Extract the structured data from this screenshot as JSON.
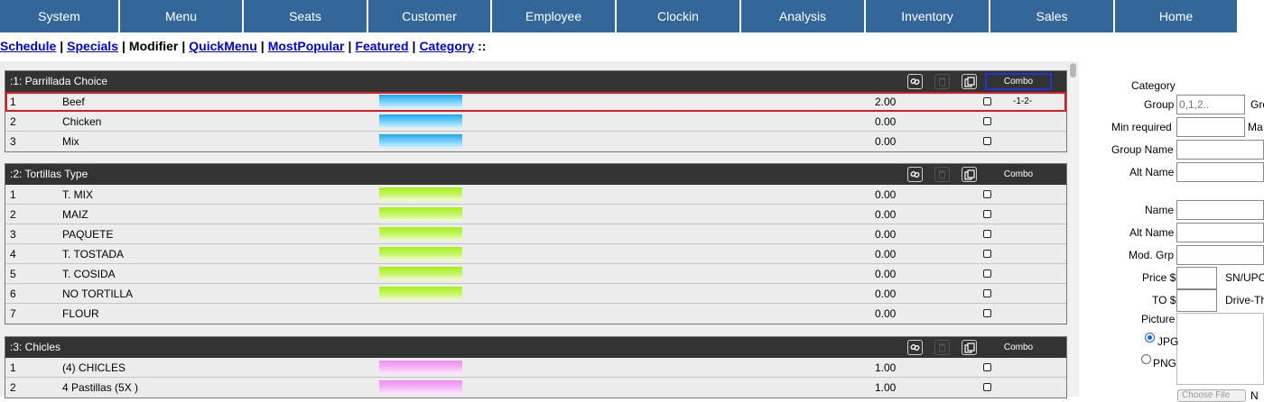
{
  "topnav": {
    "tabs": [
      {
        "label": "System"
      },
      {
        "label": "Menu"
      },
      {
        "label": "Seats"
      },
      {
        "label": "Customer"
      },
      {
        "label": "Employee"
      },
      {
        "label": "Clockin"
      },
      {
        "label": "Analysis"
      },
      {
        "label": "Inventory"
      },
      {
        "label": "Sales"
      },
      {
        "label": "Home"
      }
    ]
  },
  "subnav": {
    "schedule": "Schedule",
    "specials": "Specials",
    "modifier": "Modifier",
    "quickmenu": "QuickMenu",
    "mostpopular": "MostPopular",
    "featured": "Featured",
    "category": "Category",
    "sep": "|",
    "end": "::"
  },
  "groups": [
    {
      "title": ":1: Parrillada Choice",
      "combo_label": "Combo",
      "rows": [
        {
          "num": "1",
          "name": "Beef",
          "price": "2.00",
          "combo": "-1-2-"
        },
        {
          "num": "2",
          "name": "Chicken",
          "price": "0.00",
          "combo": ""
        },
        {
          "num": "3",
          "name": "Mix",
          "price": "0.00",
          "combo": ""
        }
      ]
    },
    {
      "title": ":2: Tortillas Type",
      "combo_label": "Combo",
      "rows": [
        {
          "num": "1",
          "name": "T. MIX",
          "price": "0.00"
        },
        {
          "num": "2",
          "name": "MAIZ",
          "price": "0.00"
        },
        {
          "num": "3",
          "name": "PAQUETE",
          "price": "0.00"
        },
        {
          "num": "4",
          "name": "T. TOSTADA",
          "price": "0.00"
        },
        {
          "num": "5",
          "name": "T. COSIDA",
          "price": "0.00"
        },
        {
          "num": "6",
          "name": "NO TORTILLA",
          "price": "0.00"
        },
        {
          "num": "7",
          "name": "FLOUR",
          "price": "0.00"
        }
      ]
    },
    {
      "title": ":3: Chicles",
      "combo_label": "Combo",
      "rows": [
        {
          "num": "1",
          "name": "(4) CHICLES",
          "price": "1.00"
        },
        {
          "num": "2",
          "name": "4 Pastillas (5X )",
          "price": "1.00"
        }
      ]
    }
  ],
  "swatch_colors": {
    "group1": "#1fa8f2",
    "group2": "#a6ee1d",
    "group3": "#f08ef0"
  },
  "icons": {
    "link": "link-icon",
    "trash": "trash-icon",
    "copy": "copy-icon"
  },
  "form": {
    "category_label": "Category",
    "group_label": "Group",
    "group_placeholder": "0,1,2..",
    "group_trailing": "Gro",
    "min_required_label": "Min required",
    "min_trailing": "Ma",
    "group_name_label": "Group Name",
    "alt_name_label": "Alt Name",
    "name_label": "Name",
    "alt_name2_label": "Alt Name",
    "mod_grp_label": "Mod. Grp",
    "price_label": "Price $",
    "sn_upc_label": "SN/UPC",
    "to_label": "TO $",
    "drive_label": "Drive-Th",
    "picture_label": "Picture",
    "jpg_label": "JPG",
    "png_label": "PNG",
    "choose_file": "Choose File",
    "file_trailing": "N"
  }
}
